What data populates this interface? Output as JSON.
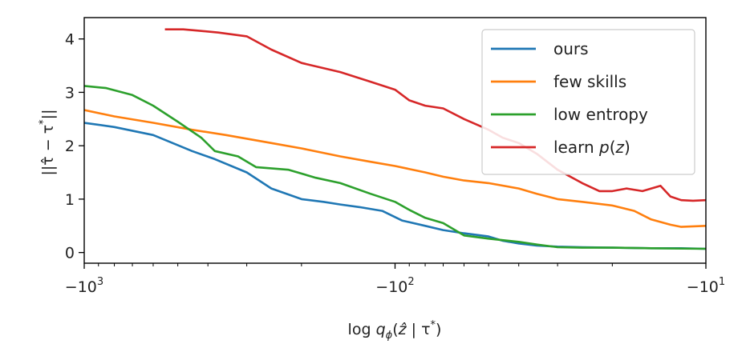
{
  "chart_data": {
    "type": "line",
    "xlabel": "log q_ϕ(ẑ | τ*)",
    "ylabel": "||τ̂ − τ*||",
    "xscale": "symlog",
    "xlim": [
      -1000,
      -10
    ],
    "ylim": [
      -0.2,
      4.4
    ],
    "x_ticks": [
      {
        "value": -1000,
        "base": "−10",
        "exp": "3"
      },
      {
        "value": -100,
        "base": "−10",
        "exp": "2"
      },
      {
        "value": -10,
        "base": "−10",
        "exp": "1"
      }
    ],
    "y_ticks": [
      0,
      1,
      2,
      3,
      4
    ],
    "grid": false,
    "legend_position": "top-right",
    "series": [
      {
        "name": "ours",
        "color": "#1f77b4",
        "x": [
          -1000,
          -800,
          -600,
          -450,
          -380,
          -300,
          -250,
          -200,
          -170,
          -150,
          -130,
          -110,
          -95,
          -80,
          -70,
          -60,
          -50,
          -45,
          -40,
          -35,
          -30,
          -25,
          -20,
          -15,
          -12,
          -10
        ],
        "y": [
          2.43,
          2.35,
          2.2,
          1.9,
          1.75,
          1.5,
          1.2,
          1.0,
          0.95,
          0.9,
          0.85,
          0.78,
          0.6,
          0.5,
          0.42,
          0.36,
          0.3,
          0.22,
          0.17,
          0.13,
          0.11,
          0.1,
          0.09,
          0.08,
          0.08,
          0.07
        ]
      },
      {
        "name": "few skills",
        "color": "#ff7f0e",
        "x": [
          -1000,
          -800,
          -600,
          -450,
          -350,
          -250,
          -200,
          -150,
          -120,
          -100,
          -80,
          -70,
          -60,
          -50,
          -40,
          -35,
          -30,
          -25,
          -20,
          -17,
          -15,
          -13,
          -12,
          -10
        ],
        "y": [
          2.67,
          2.55,
          2.43,
          2.3,
          2.2,
          2.05,
          1.95,
          1.8,
          1.7,
          1.62,
          1.5,
          1.42,
          1.35,
          1.3,
          1.2,
          1.1,
          1.0,
          0.95,
          0.88,
          0.78,
          0.62,
          0.52,
          0.48,
          0.5
        ]
      },
      {
        "name": "low entropy",
        "color": "#2ca02c",
        "x": [
          -1000,
          -850,
          -700,
          -600,
          -500,
          -420,
          -380,
          -320,
          -280,
          -220,
          -180,
          -150,
          -120,
          -100,
          -90,
          -80,
          -70,
          -60,
          -50,
          -40,
          -35,
          -30,
          -25,
          -20,
          -15,
          -10
        ],
        "y": [
          3.12,
          3.08,
          2.95,
          2.75,
          2.45,
          2.15,
          1.9,
          1.8,
          1.6,
          1.55,
          1.4,
          1.3,
          1.1,
          0.95,
          0.8,
          0.65,
          0.55,
          0.32,
          0.26,
          0.2,
          0.15,
          0.1,
          0.09,
          0.09,
          0.08,
          0.07
        ]
      },
      {
        "name": "learn p(z)",
        "color": "#d62728",
        "x": [
          -550,
          -480,
          -420,
          -370,
          -300,
          -250,
          -200,
          -150,
          -120,
          -100,
          -90,
          -80,
          -70,
          -60,
          -50,
          -45,
          -40,
          -35,
          -30,
          -25,
          -22,
          -20,
          -18,
          -16,
          -14,
          -13,
          -12,
          -11,
          -10
        ],
        "y": [
          4.18,
          4.18,
          4.15,
          4.12,
          4.05,
          3.8,
          3.55,
          3.38,
          3.2,
          3.05,
          2.85,
          2.75,
          2.7,
          2.5,
          2.3,
          2.15,
          2.05,
          1.85,
          1.55,
          1.3,
          1.15,
          1.15,
          1.2,
          1.15,
          1.25,
          1.05,
          0.98,
          0.97,
          0.98
        ]
      }
    ]
  }
}
